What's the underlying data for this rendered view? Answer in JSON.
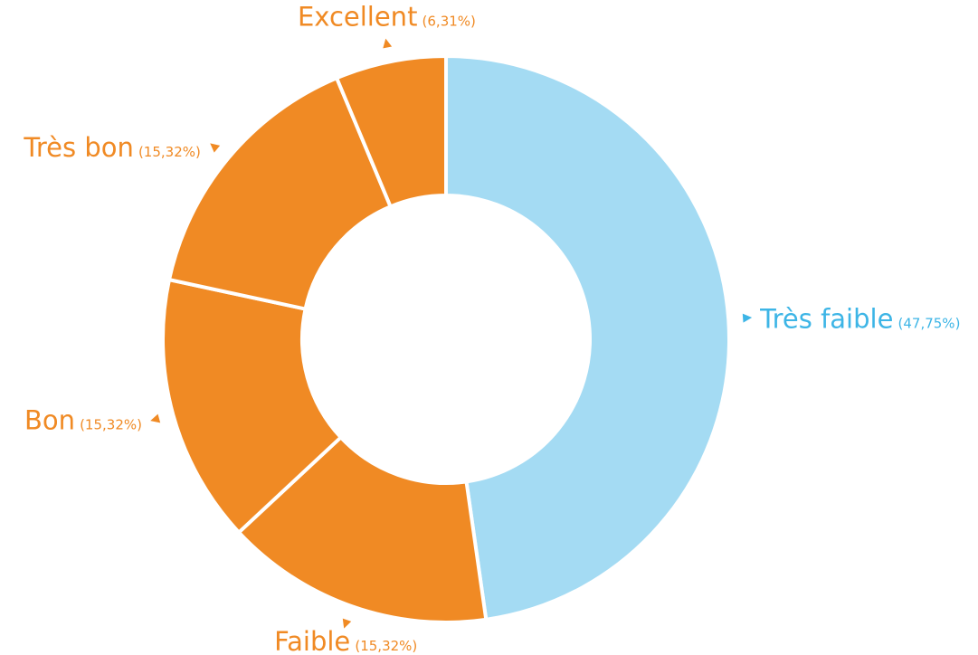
{
  "chart_data": {
    "type": "donut",
    "categories": [
      "Très faible",
      "Faible",
      "Bon",
      "Très bon",
      "Excellent"
    ],
    "values": [
      47.75,
      15.32,
      15.32,
      15.32,
      6.31
    ],
    "value_labels": [
      "(47,75%)",
      "(15,32%)",
      "(15,32%)",
      "(15,32%)",
      "(6,31%)"
    ],
    "colors": [
      "#a4dbf3",
      "#f08a24",
      "#f08a24",
      "#f08a24",
      "#f08a24"
    ],
    "label_colors": [
      "#3db5e6",
      "#f08a24",
      "#f08a24",
      "#f08a24",
      "#f08a24"
    ]
  }
}
